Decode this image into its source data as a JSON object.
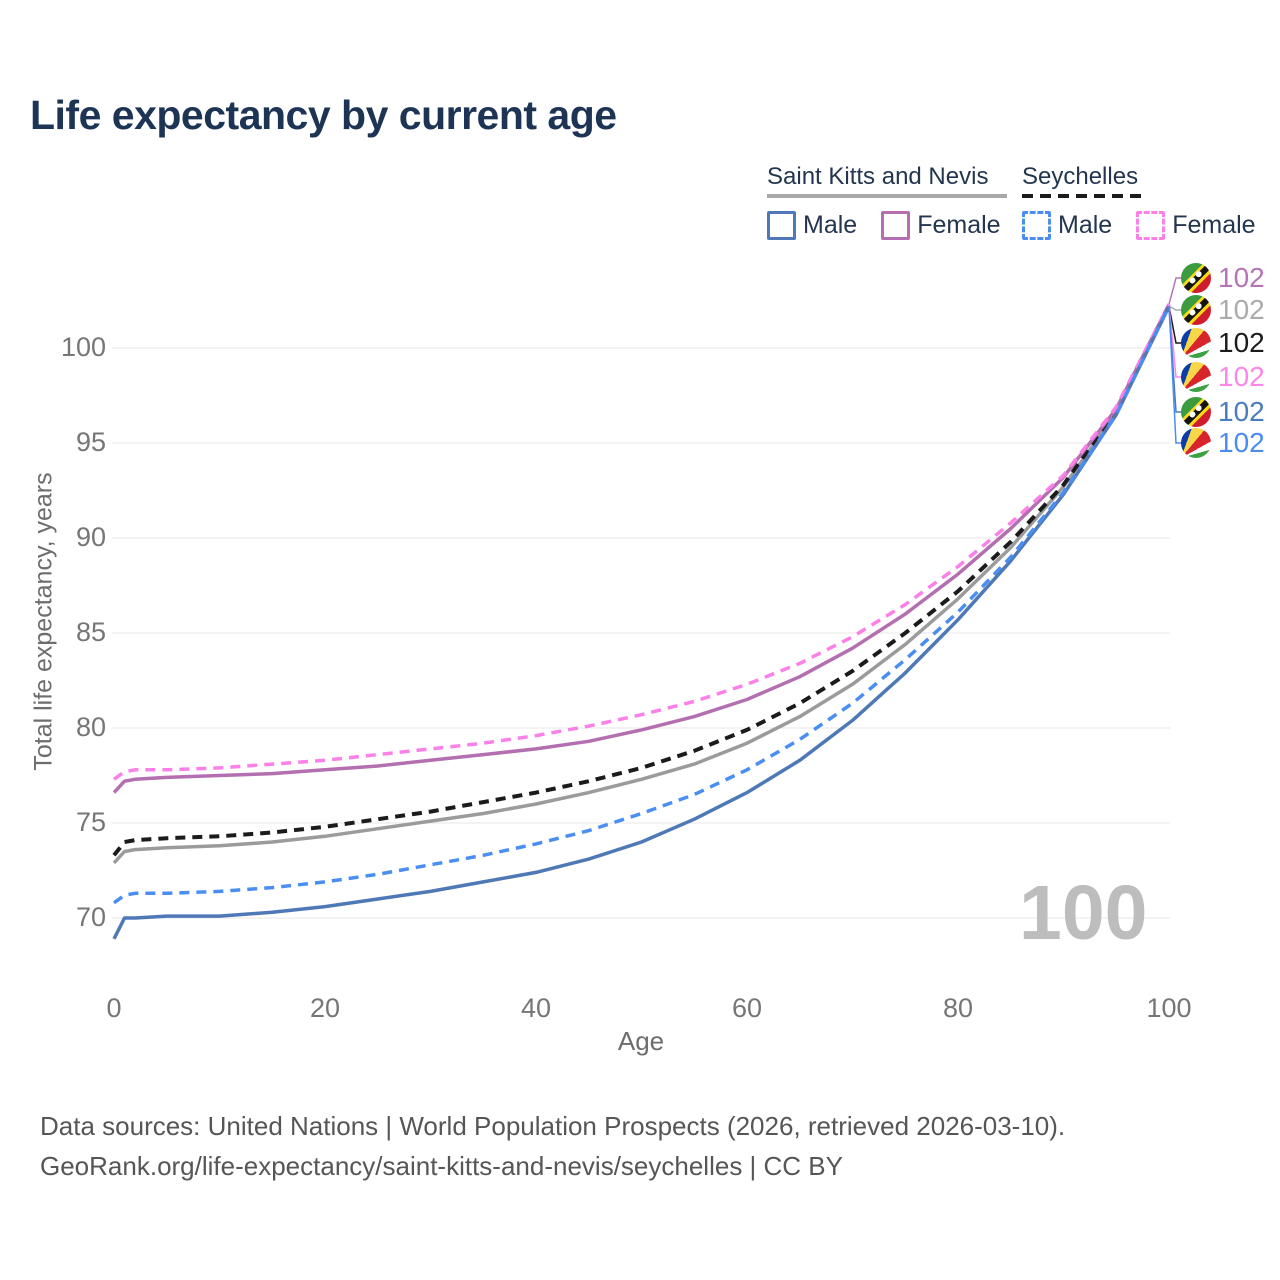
{
  "title": "Life expectancy by current age",
  "legend": {
    "groups": [
      {
        "name": "Saint Kitts and Nevis",
        "line_style": "solid",
        "underline_color": "#a8a8a8",
        "items": [
          {
            "label": "Male",
            "color": "#4e79b6",
            "dashed": false
          },
          {
            "label": "Female",
            "color": "#b36fb0",
            "dashed": false
          }
        ]
      },
      {
        "name": "Seychelles",
        "line_style": "dashed",
        "underline_color": "#1b1b1b",
        "items": [
          {
            "label": "Male",
            "color": "#4a8ef2",
            "dashed": true
          },
          {
            "label": "Female",
            "color": "#fb80e8",
            "dashed": true
          }
        ]
      }
    ]
  },
  "chart_data": {
    "type": "line",
    "title": "Life expectancy by current age",
    "xlabel": "Age",
    "ylabel": "Total life expectancy, years",
    "x_ticks": [
      0,
      20,
      40,
      60,
      80,
      100
    ],
    "y_ticks": [
      70,
      75,
      80,
      85,
      90,
      95,
      100
    ],
    "xlim": [
      0,
      100
    ],
    "ylim": [
      68.5,
      103
    ],
    "grid": "horizontal",
    "legend_position": "top-right",
    "watermark": "100",
    "x": [
      0,
      1,
      2,
      5,
      10,
      15,
      20,
      25,
      30,
      35,
      40,
      45,
      50,
      55,
      60,
      65,
      70,
      75,
      80,
      85,
      90,
      95,
      100
    ],
    "series": [
      {
        "key": "skn-total",
        "name": "Saint Kitts and Nevis — Both sexes",
        "color": "#9b9b9b",
        "dashed": false,
        "values": [
          72.9,
          73.5,
          73.6,
          73.7,
          73.8,
          74.0,
          74.3,
          74.7,
          75.1,
          75.5,
          76.0,
          76.6,
          77.3,
          78.1,
          79.2,
          80.6,
          82.3,
          84.4,
          86.8,
          89.5,
          92.7,
          96.6,
          102.2
        ]
      },
      {
        "key": "sey-total",
        "name": "Seychelles — Both sexes",
        "color": "#1b1b1b",
        "dashed": true,
        "values": [
          73.3,
          74.0,
          74.1,
          74.2,
          74.3,
          74.5,
          74.8,
          75.2,
          75.6,
          76.1,
          76.6,
          77.2,
          77.9,
          78.8,
          79.9,
          81.3,
          83.0,
          85.0,
          87.2,
          89.8,
          92.8,
          96.7,
          102.2
        ]
      },
      {
        "key": "skn-female",
        "name": "Saint Kitts and Nevis — Female",
        "color": "#b36fb0",
        "dashed": false,
        "values": [
          76.6,
          77.2,
          77.3,
          77.4,
          77.5,
          77.6,
          77.8,
          78.0,
          78.3,
          78.6,
          78.9,
          79.3,
          79.9,
          80.6,
          81.5,
          82.7,
          84.2,
          86.0,
          88.1,
          90.5,
          93.2,
          96.8,
          102.3
        ]
      },
      {
        "key": "sey-female",
        "name": "Seychelles — Female",
        "color": "#fb80e8",
        "dashed": true,
        "values": [
          77.3,
          77.7,
          77.8,
          77.8,
          77.9,
          78.1,
          78.3,
          78.6,
          78.9,
          79.2,
          79.6,
          80.1,
          80.7,
          81.4,
          82.3,
          83.4,
          84.8,
          86.5,
          88.5,
          90.8,
          93.3,
          96.9,
          102.3
        ]
      },
      {
        "key": "skn-male",
        "name": "Saint Kitts and Nevis — Male",
        "color": "#4e79b6",
        "dashed": false,
        "values": [
          68.9,
          70.0,
          70.0,
          70.1,
          70.1,
          70.3,
          70.6,
          71.0,
          71.4,
          71.9,
          72.4,
          73.1,
          74.0,
          75.2,
          76.6,
          78.3,
          80.4,
          82.9,
          85.7,
          88.8,
          92.3,
          96.5,
          102.2
        ]
      },
      {
        "key": "sey-male",
        "name": "Seychelles — Male",
        "color": "#4a8ef2",
        "dashed": true,
        "values": [
          70.8,
          71.2,
          71.3,
          71.3,
          71.4,
          71.6,
          71.9,
          72.3,
          72.8,
          73.3,
          73.9,
          74.6,
          75.5,
          76.5,
          77.8,
          79.4,
          81.3,
          83.6,
          86.1,
          89.0,
          92.4,
          96.5,
          102.2
        ]
      }
    ],
    "end_labels": [
      {
        "series": "skn-female",
        "flag": "saint-kitts-and-nevis",
        "value": "102",
        "color": "#b575b5"
      },
      {
        "series": "skn-total",
        "flag": "saint-kitts-and-nevis",
        "value": "102",
        "color": "#ababab"
      },
      {
        "series": "sey-total",
        "flag": "seychelles",
        "value": "102",
        "color": "#1b1b1b"
      },
      {
        "series": "sey-female",
        "flag": "seychelles",
        "value": "102",
        "color": "#fd86e9"
      },
      {
        "series": "skn-male",
        "flag": "saint-kitts-and-nevis",
        "value": "102",
        "color": "#4a7cc0"
      },
      {
        "series": "sey-male",
        "flag": "seychelles",
        "value": "102",
        "color": "#4a8df2"
      }
    ]
  },
  "footer": {
    "line1": "Data sources: United Nations | World Population Prospects (2026, retrieved 2026-03-10).",
    "line2": "GeoRank.org/life-expectancy/saint-kitts-and-nevis/seychelles | CC BY"
  }
}
